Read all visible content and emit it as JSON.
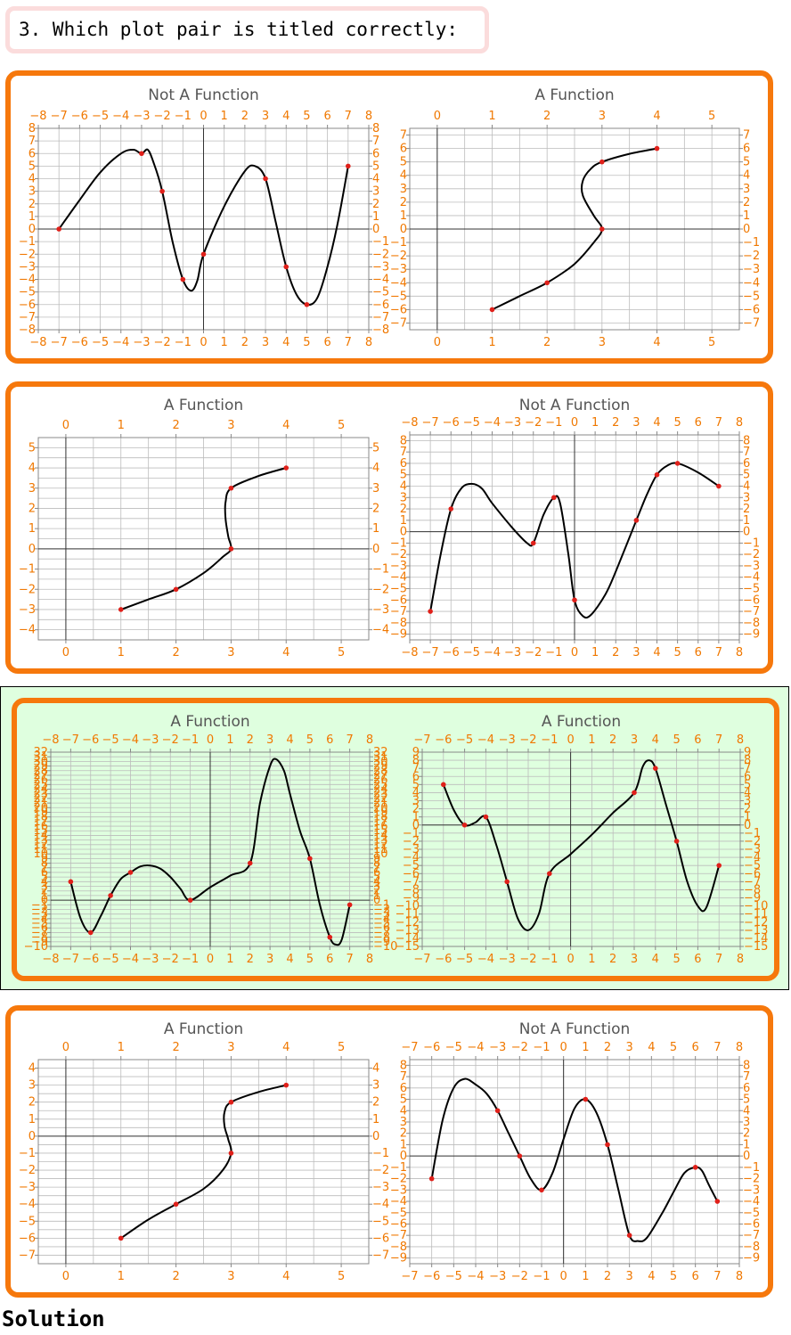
{
  "question": "3. Which plot pair is titled correctly:",
  "solution_label": "Solution",
  "colors": {
    "frame": "#f6780c",
    "tick_text": "#f07800",
    "curve": "#000000",
    "point": "#e0201a",
    "highlight_bg": "#dfffdf",
    "question_border": "#fbdcdc"
  },
  "chart_data": [
    {
      "type": "line",
      "title": "Not A Function",
      "xlim": [
        -8,
        8
      ],
      "ylim": [
        -8,
        8
      ],
      "xticks": [
        -8,
        -7,
        -6,
        -5,
        -4,
        -3,
        -2,
        -1,
        0,
        1,
        2,
        3,
        4,
        5,
        6,
        7,
        8
      ],
      "yticks": [
        -8,
        -7,
        -6,
        -5,
        -4,
        -3,
        -2,
        -1,
        0,
        1,
        2,
        3,
        4,
        5,
        6,
        7,
        8
      ],
      "points": [
        [
          -7,
          0
        ],
        [
          -3,
          6
        ],
        [
          -2,
          3
        ],
        [
          -1,
          -4
        ],
        [
          0,
          -2
        ],
        [
          3,
          4
        ],
        [
          4,
          -3
        ],
        [
          5,
          -6
        ],
        [
          7,
          5
        ]
      ],
      "curve": [
        [
          -7,
          0
        ],
        [
          -6,
          2.3
        ],
        [
          -5,
          4.5
        ],
        [
          -4,
          6
        ],
        [
          -3.4,
          6.3
        ],
        [
          -3,
          6
        ],
        [
          -2.7,
          6.3
        ],
        [
          -2.4,
          5.2
        ],
        [
          -2,
          3
        ],
        [
          -1.5,
          -1
        ],
        [
          -1,
          -4
        ],
        [
          -0.6,
          -4.9
        ],
        [
          -0.3,
          -4.1
        ],
        [
          0,
          -2
        ],
        [
          1,
          1.8
        ],
        [
          2,
          4.6
        ],
        [
          2.5,
          5
        ],
        [
          3,
          4
        ],
        [
          3.5,
          0.5
        ],
        [
          4,
          -3
        ],
        [
          4.5,
          -5.2
        ],
        [
          5,
          -6
        ],
        [
          5.5,
          -5.5
        ],
        [
          6,
          -3
        ],
        [
          6.5,
          0.5
        ],
        [
          7,
          5
        ]
      ]
    },
    {
      "type": "line",
      "title": "A Function",
      "xlim": [
        -0.5,
        5.5
      ],
      "ylim": [
        -7.5,
        7.5
      ],
      "xticks": [
        0,
        1,
        2,
        3,
        4,
        5
      ],
      "yticks": [
        -7,
        -6,
        -5,
        -4,
        -3,
        -2,
        -1,
        0,
        1,
        2,
        3,
        4,
        5,
        6,
        7
      ],
      "points": [
        [
          1,
          -6
        ],
        [
          2,
          -4
        ],
        [
          3,
          0
        ],
        [
          3,
          5
        ],
        [
          4,
          6
        ]
      ],
      "curve": [
        [
          1,
          -6
        ],
        [
          1.5,
          -5
        ],
        [
          2,
          -4
        ],
        [
          2.5,
          -2.6
        ],
        [
          2.85,
          -1
        ],
        [
          3,
          0
        ],
        [
          2.85,
          1
        ],
        [
          2.65,
          2.5
        ],
        [
          2.65,
          3.6
        ],
        [
          2.8,
          4.5
        ],
        [
          3,
          5
        ],
        [
          3.5,
          5.6
        ],
        [
          4,
          6
        ]
      ]
    },
    {
      "type": "line",
      "title": "A Function",
      "xlim": [
        -0.5,
        5.5
      ],
      "ylim": [
        -4.5,
        5.5
      ],
      "xticks": [
        0,
        1,
        2,
        3,
        4,
        5
      ],
      "yticks": [
        -4,
        -3,
        -2,
        -1,
        0,
        1,
        2,
        3,
        4,
        5
      ],
      "points": [
        [
          1,
          -3
        ],
        [
          2,
          -2
        ],
        [
          3,
          0
        ],
        [
          3,
          3
        ],
        [
          4,
          4
        ]
      ],
      "curve": [
        [
          1,
          -3
        ],
        [
          1.5,
          -2.5
        ],
        [
          2,
          -2
        ],
        [
          2.5,
          -1.2
        ],
        [
          2.85,
          -0.4
        ],
        [
          3,
          0
        ],
        [
          2.95,
          0.6
        ],
        [
          2.9,
          1.5
        ],
        [
          2.9,
          2.3
        ],
        [
          3,
          3
        ],
        [
          3.5,
          3.6
        ],
        [
          4,
          4
        ]
      ]
    },
    {
      "type": "line",
      "title": "Not A Function",
      "xlim": [
        -8,
        8
      ],
      "ylim": [
        -9.5,
        8.5
      ],
      "xticks": [
        -8,
        -7,
        -6,
        -5,
        -4,
        -3,
        -2,
        -1,
        0,
        1,
        2,
        3,
        4,
        5,
        6,
        7,
        8
      ],
      "yticks": [
        -9,
        -8,
        -7,
        -6,
        -5,
        -4,
        -3,
        -2,
        -1,
        0,
        1,
        2,
        3,
        4,
        5,
        6,
        7,
        8
      ],
      "points": [
        [
          -7,
          -7
        ],
        [
          -6,
          2
        ],
        [
          -2,
          -1
        ],
        [
          -1,
          3
        ],
        [
          0,
          -6
        ],
        [
          3,
          1
        ],
        [
          4,
          5
        ],
        [
          5,
          6
        ],
        [
          7,
          4
        ]
      ],
      "curve": [
        [
          -7,
          -7
        ],
        [
          -6.5,
          -2
        ],
        [
          -6,
          2
        ],
        [
          -5.5,
          3.8
        ],
        [
          -5,
          4.2
        ],
        [
          -4.5,
          3.8
        ],
        [
          -4,
          2.5
        ],
        [
          -3,
          0.3
        ],
        [
          -2.3,
          -1
        ],
        [
          -2,
          -1
        ],
        [
          -1.5,
          1.5
        ],
        [
          -1,
          3
        ],
        [
          -0.7,
          2.5
        ],
        [
          -0.3,
          -2
        ],
        [
          0,
          -6
        ],
        [
          0.4,
          -7.4
        ],
        [
          0.8,
          -7.3
        ],
        [
          1.5,
          -5.5
        ],
        [
          2,
          -3.5
        ],
        [
          3,
          1
        ],
        [
          3.5,
          3.2
        ],
        [
          4,
          5
        ],
        [
          4.5,
          5.8
        ],
        [
          5,
          6
        ],
        [
          6,
          5.2
        ],
        [
          7,
          4
        ]
      ]
    },
    {
      "type": "line",
      "title": "A Function",
      "xlim": [
        -8,
        8
      ],
      "ylim": [
        -10,
        32
      ],
      "xticks": [
        -8,
        -7,
        -6,
        -5,
        -4,
        -3,
        -2,
        -1,
        0,
        1,
        2,
        3,
        4,
        5,
        6,
        7,
        8
      ],
      "yticks": [
        -10,
        -9,
        -8,
        -7,
        -6,
        -5,
        -4,
        -3,
        -2,
        -1,
        0,
        1,
        2,
        3,
        4,
        5,
        6,
        7,
        8,
        9,
        10,
        11,
        12,
        13,
        14,
        15,
        16,
        17,
        18,
        19,
        20,
        21,
        22,
        23,
        24,
        25,
        26,
        27,
        28,
        29,
        30,
        31,
        32
      ],
      "points": [
        [
          -7,
          4
        ],
        [
          -6,
          -7
        ],
        [
          -5,
          1
        ],
        [
          -4,
          6
        ],
        [
          -1,
          0
        ],
        [
          2,
          8
        ],
        [
          5,
          9
        ],
        [
          6,
          -8
        ],
        [
          7,
          -1
        ]
      ],
      "curve": [
        [
          -7,
          4
        ],
        [
          -6.5,
          -4
        ],
        [
          -6,
          -7
        ],
        [
          -5.5,
          -3.5
        ],
        [
          -5,
          1
        ],
        [
          -4.5,
          4.5
        ],
        [
          -4,
          6
        ],
        [
          -3.5,
          7.3
        ],
        [
          -3,
          7.5
        ],
        [
          -2.5,
          6.8
        ],
        [
          -2,
          5
        ],
        [
          -1.5,
          2.5
        ],
        [
          -1,
          0
        ],
        [
          0,
          2.8
        ],
        [
          1,
          5.3
        ],
        [
          2,
          8
        ],
        [
          2.5,
          21
        ],
        [
          3,
          29
        ],
        [
          3.3,
          30.5
        ],
        [
          3.7,
          28
        ],
        [
          4,
          23
        ],
        [
          4.5,
          15
        ],
        [
          5,
          9
        ],
        [
          5.5,
          -1
        ],
        [
          6,
          -8
        ],
        [
          6.3,
          -9.6
        ],
        [
          6.6,
          -8.5
        ],
        [
          7,
          -1
        ]
      ]
    },
    {
      "type": "line",
      "title": "A Function",
      "xlim": [
        -7,
        8
      ],
      "ylim": [
        -15,
        9
      ],
      "xticks": [
        -7,
        -6,
        -5,
        -4,
        -3,
        -2,
        -1,
        0,
        1,
        2,
        3,
        4,
        5,
        6,
        7,
        8
      ],
      "yticks": [
        -15,
        -14,
        -13,
        -12,
        -11,
        -10,
        -9,
        -8,
        -7,
        -6,
        -5,
        -4,
        -3,
        -2,
        -1,
        0,
        1,
        2,
        3,
        4,
        5,
        6,
        7,
        8,
        9
      ],
      "points": [
        [
          -6,
          5
        ],
        [
          -5,
          0
        ],
        [
          -4,
          1
        ],
        [
          -3,
          -7
        ],
        [
          -1,
          -6
        ],
        [
          3,
          4
        ],
        [
          4,
          7
        ],
        [
          5,
          -2
        ],
        [
          7,
          -5
        ]
      ],
      "curve": [
        [
          -6,
          5
        ],
        [
          -5.5,
          1.8
        ],
        [
          -5,
          0
        ],
        [
          -4.5,
          0.3
        ],
        [
          -4,
          1
        ],
        [
          -3.5,
          -2.5
        ],
        [
          -3,
          -7
        ],
        [
          -2.5,
          -11.5
        ],
        [
          -2,
          -13
        ],
        [
          -1.5,
          -11
        ],
        [
          -1,
          -6
        ],
        [
          0,
          -3.6
        ],
        [
          1,
          -1.2
        ],
        [
          2,
          1.5
        ],
        [
          3,
          4
        ],
        [
          3.4,
          7.2
        ],
        [
          3.7,
          8
        ],
        [
          4,
          7
        ],
        [
          4.5,
          2.5
        ],
        [
          5,
          -2
        ],
        [
          5.5,
          -7
        ],
        [
          6,
          -10
        ],
        [
          6.4,
          -10.2
        ],
        [
          7,
          -5
        ]
      ]
    },
    {
      "type": "line",
      "title": "A Function",
      "xlim": [
        -0.5,
        5.5
      ],
      "ylim": [
        -7.5,
        4.5
      ],
      "xticks": [
        0,
        1,
        2,
        3,
        4,
        5
      ],
      "yticks": [
        -7,
        -6,
        -5,
        -4,
        -3,
        -2,
        -1,
        0,
        1,
        2,
        3,
        4
      ],
      "points": [
        [
          1,
          -6
        ],
        [
          2,
          -4
        ],
        [
          3,
          -1
        ],
        [
          3,
          2
        ],
        [
          4,
          3
        ]
      ],
      "curve": [
        [
          1,
          -6
        ],
        [
          1.5,
          -4.9
        ],
        [
          2,
          -4
        ],
        [
          2.5,
          -3.1
        ],
        [
          2.85,
          -2
        ],
        [
          3,
          -1
        ],
        [
          2.95,
          -0.2
        ],
        [
          2.88,
          0.6
        ],
        [
          2.88,
          1.4
        ],
        [
          3,
          2
        ],
        [
          3.5,
          2.6
        ],
        [
          4,
          3
        ]
      ]
    },
    {
      "type": "line",
      "title": "Not A Function",
      "xlim": [
        -7,
        8
      ],
      "ylim": [
        -9.5,
        8.5
      ],
      "xticks": [
        -7,
        -6,
        -5,
        -4,
        -3,
        -2,
        -1,
        0,
        1,
        2,
        3,
        4,
        5,
        6,
        7,
        8
      ],
      "yticks": [
        -9,
        -8,
        -7,
        -6,
        -5,
        -4,
        -3,
        -2,
        -1,
        0,
        1,
        2,
        3,
        4,
        5,
        6,
        7,
        8
      ],
      "points": [
        [
          -6,
          -2
        ],
        [
          -3,
          4
        ],
        [
          -2,
          0
        ],
        [
          -1,
          -3
        ],
        [
          1,
          5
        ],
        [
          2,
          1
        ],
        [
          3,
          -7
        ],
        [
          6,
          -1
        ],
        [
          7,
          -4
        ]
      ],
      "curve": [
        [
          -6,
          -2
        ],
        [
          -5.5,
          3.2
        ],
        [
          -5,
          6
        ],
        [
          -4.5,
          6.8
        ],
        [
          -4,
          6.3
        ],
        [
          -3.5,
          5.5
        ],
        [
          -3,
          4
        ],
        [
          -2.5,
          2
        ],
        [
          -2,
          0
        ],
        [
          -1.5,
          -2
        ],
        [
          -1,
          -3
        ],
        [
          -0.5,
          -1.5
        ],
        [
          0,
          1.5
        ],
        [
          0.5,
          4.2
        ],
        [
          1,
          5
        ],
        [
          1.5,
          3.8
        ],
        [
          2,
          1
        ],
        [
          2.5,
          -3
        ],
        [
          3,
          -7
        ],
        [
          3.4,
          -7.5
        ],
        [
          3.8,
          -7.2
        ],
        [
          4.5,
          -5
        ],
        [
          5,
          -3.2
        ],
        [
          5.5,
          -1.5
        ],
        [
          6,
          -1
        ],
        [
          6.3,
          -1.3
        ],
        [
          6.6,
          -2.5
        ],
        [
          7,
          -4
        ]
      ]
    }
  ]
}
